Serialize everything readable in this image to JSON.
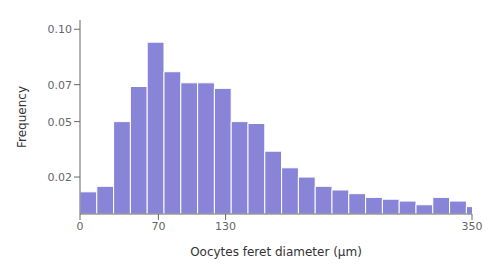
{
  "chart_data": {
    "type": "histogram",
    "xlabel": "Oocytes feret diameter (μm)",
    "ylabel": "Frequency",
    "bins": [
      0,
      15,
      30,
      45,
      60,
      75,
      90,
      105,
      120,
      135,
      150,
      165,
      180,
      195,
      210,
      225,
      240,
      255,
      270,
      285,
      300,
      315,
      330,
      345,
      360
    ],
    "values": [
      0.012,
      0.015,
      0.05,
      0.069,
      0.093,
      0.077,
      0.071,
      0.071,
      0.068,
      0.05,
      0.049,
      0.034,
      0.025,
      0.02,
      0.015,
      0.013,
      0.011,
      0.009,
      0.008,
      0.007,
      0.005,
      0.009,
      0.007,
      0.004
    ],
    "xlim": [
      0,
      350
    ],
    "ylim": [
      0,
      0.105
    ],
    "xticks": [
      0,
      70,
      130,
      350
    ],
    "yticks": [
      0.02,
      0.05,
      0.07,
      {
        "value": 0.1,
        "label": "0.10"
      }
    ]
  }
}
